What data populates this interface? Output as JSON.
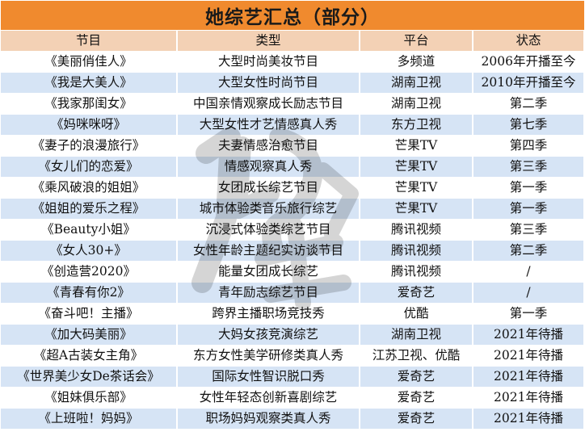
{
  "title": "她综艺汇总（部分）",
  "headers": [
    "节目",
    "类型",
    "平台",
    "状态"
  ],
  "rows": [
    [
      "《美丽俏佳人》",
      "大型时尚美妆节目",
      "多频道",
      "2006年开播至今"
    ],
    [
      "《我是大美人》",
      "大型女性时尚节目",
      "湖南卫视",
      "2010年开播至今"
    ],
    [
      "《我家那闺女》",
      "中国亲情观察成长励志节目",
      "湖南卫视",
      "第二季"
    ],
    [
      "《妈咪咪呀》",
      "大型女性才艺情感真人秀",
      "东方卫视",
      "第七季"
    ],
    [
      "《妻子的浪漫旅行》",
      "夫妻情感治愈节目",
      "芒果TV",
      "第四季"
    ],
    [
      "《女儿们的恋爱》",
      "情感观察真人秀",
      "芒果TV",
      "第三季"
    ],
    [
      "《乘风破浪的姐姐》",
      "女团成长综艺节目",
      "芒果TV",
      "第一季"
    ],
    [
      "《姐姐的爱乐之程》",
      "城市体验类音乐旅行综艺",
      "芒果TV",
      "第一季"
    ],
    [
      "《Beauty小姐》",
      "沉浸式体验类综艺节目",
      "腾讯视频",
      "第三季"
    ],
    [
      "《女人30+》",
      "女性年龄主题纪实访谈节目",
      "腾讯视频",
      "第二季"
    ],
    [
      "《创造营2020》",
      "能量女团成长综艺",
      "腾讯视频",
      "/"
    ],
    [
      "《青春有你2》",
      "青年励志综艺节目",
      "爱奇艺",
      "/"
    ],
    [
      "《奋斗吧！主播》",
      "跨界主播职场竞技秀",
      "优酷",
      "第一季"
    ],
    [
      "《加大码美丽》",
      "大妈女孩竞演综艺",
      "湖南卫视",
      "2021年待播"
    ],
    [
      "《超A古装女主角》",
      "东方女性美学研修类真人秀",
      "江苏卫视、优酷",
      "2021年待播"
    ],
    [
      "《世界美少女De茶话会》",
      "国际女性智识脱口秀",
      "爱奇艺",
      "2021年待播"
    ],
    [
      "《姐妹俱乐部》",
      "女性年轻态创新喜剧综艺",
      "爱奇艺",
      "2021年待播"
    ],
    [
      "《上班啦！妈妈》",
      "职场妈妈观察类真人秀",
      "爱奇艺",
      "2021年待播"
    ]
  ],
  "colors": {
    "title_bg": "#f08a2e",
    "header_bg": "#f3d1b5",
    "stripe_bg": "#d6e4f5"
  },
  "watermark_icon": "calligraphy-watermark"
}
